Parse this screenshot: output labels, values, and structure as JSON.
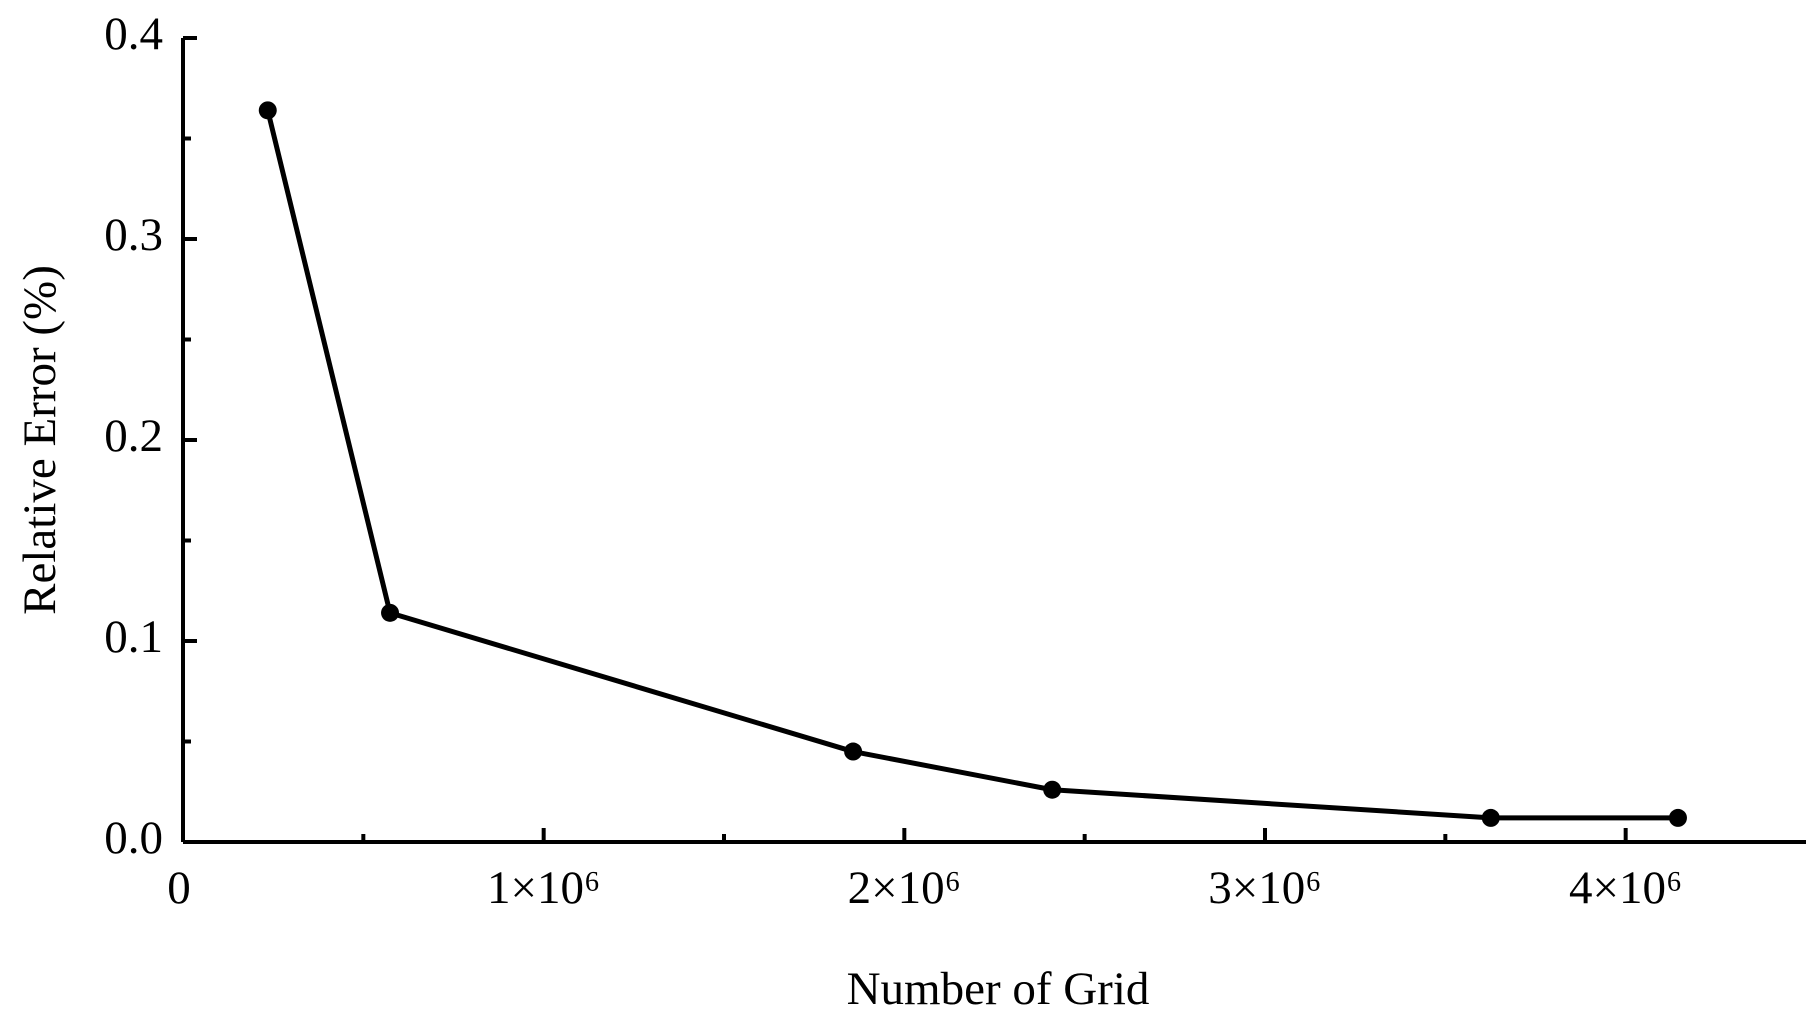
{
  "chart_data": {
    "type": "line",
    "x_label": "Number of Grid",
    "y_label": "Relative Error (%)",
    "x": [
      235000,
      574000,
      1858000,
      2410000,
      3626000,
      4145000
    ],
    "series": [
      {
        "color": "#000000",
        "values": [
          0.364,
          0.114,
          0.045,
          0.026,
          0.012,
          0.012
        ]
      }
    ],
    "xlim": [
      0,
      4500000
    ],
    "xticks": [
      0,
      {
        "value": 1000000,
        "label": "1×10⁶"
      },
      {
        "value": 2000000,
        "label": "2×10⁶"
      },
      {
        "value": 3000000,
        "label": "3×10⁶"
      },
      {
        "value": 4000000,
        "label": "4×10⁶"
      }
    ],
    "x_minor_ticks": [
      500000,
      1500000,
      2500000,
      3500000
    ],
    "ylim": [
      0,
      0.4
    ],
    "yticks": [
      {
        "value": 0,
        "label": "0.0"
      },
      0.1,
      0.2,
      0.3,
      0.4
    ],
    "y_minor_ticks": [
      0.05,
      0.15,
      0.25,
      0.35
    ],
    "grid": false
  }
}
